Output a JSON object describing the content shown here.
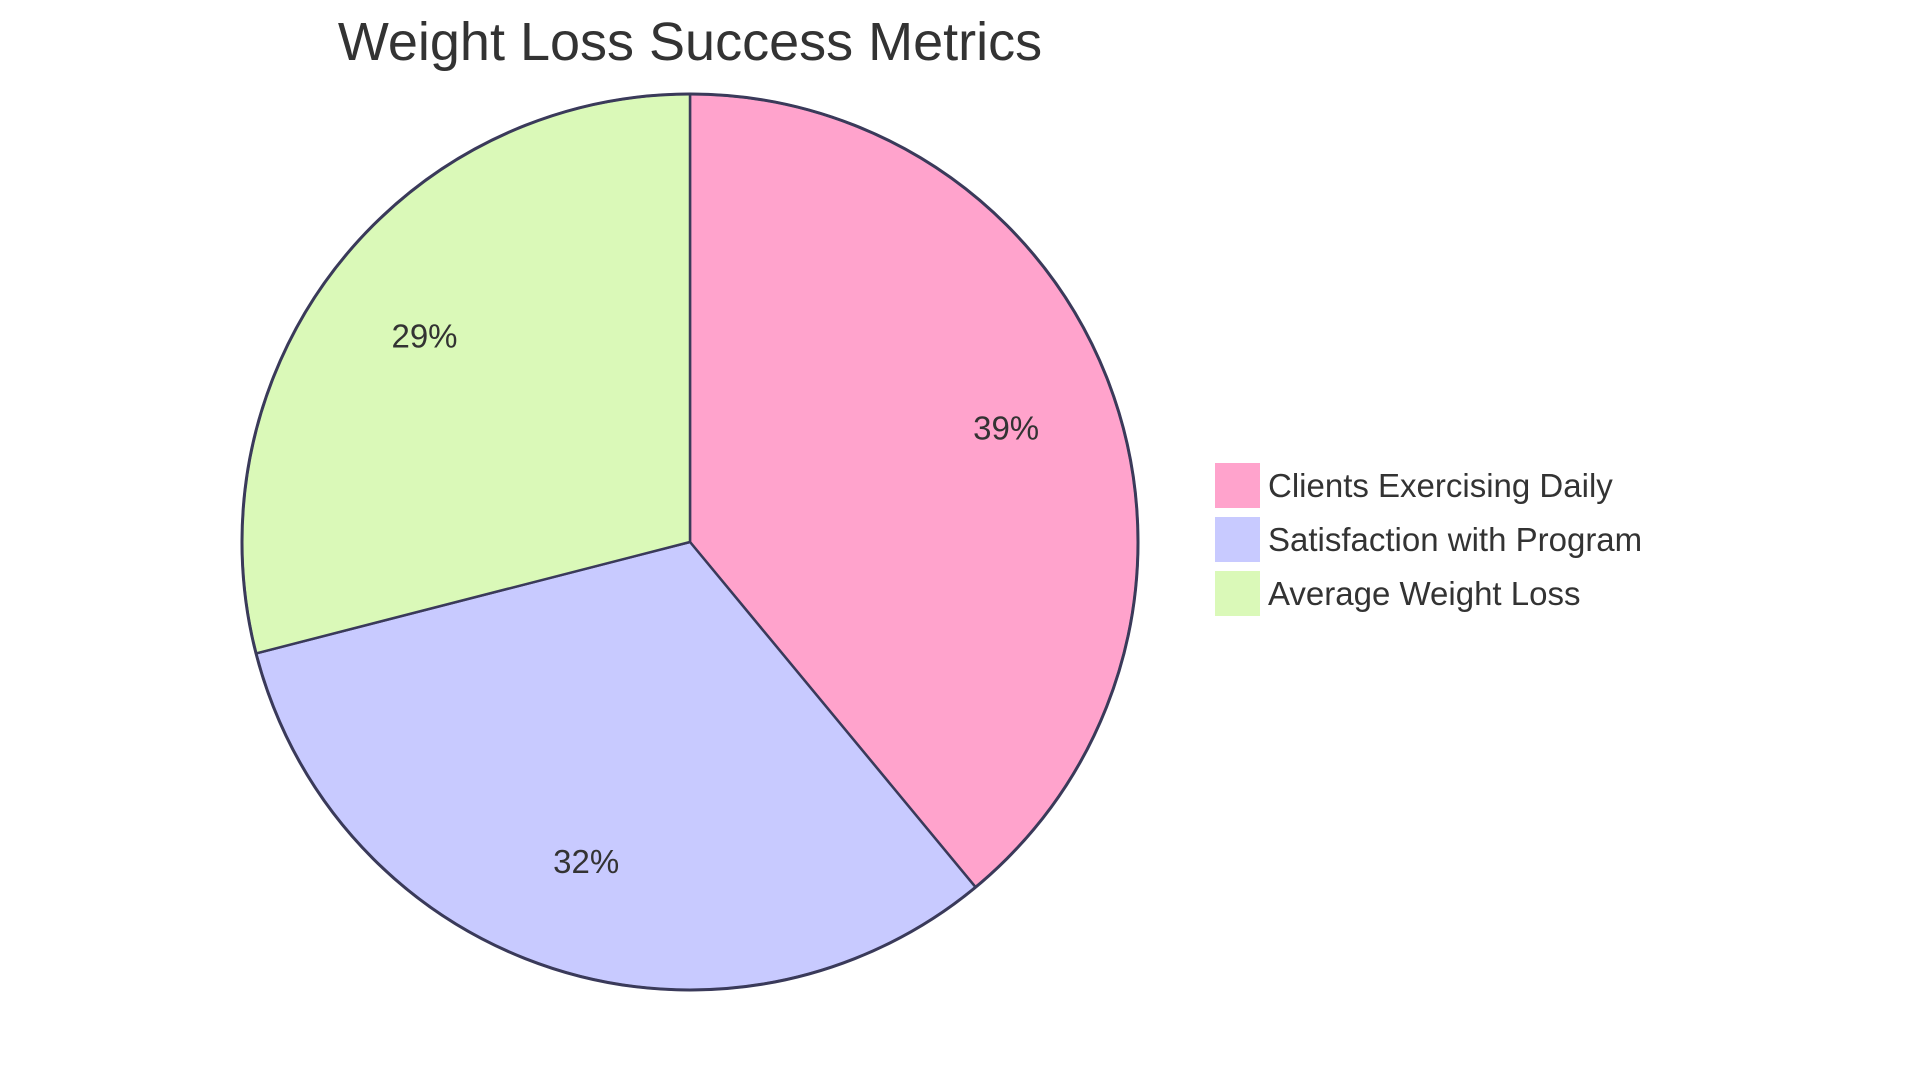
{
  "chart_data": {
    "type": "pie",
    "title": "Weight Loss Success Metrics",
    "slices": [
      {
        "name": "Clients Exercising Daily",
        "value": 39,
        "label": "39%",
        "color": "#FFA3CC"
      },
      {
        "name": "Satisfaction with Program",
        "value": 32,
        "label": "32%",
        "color": "#C8CAFF"
      },
      {
        "name": "Average Weight Loss",
        "value": 29,
        "label": "29%",
        "color": "#DAF9B8"
      }
    ],
    "start_angle": "12 o'clock",
    "direction": "clockwise",
    "legend_position": "right",
    "stroke_color": "#3A3A5A"
  }
}
